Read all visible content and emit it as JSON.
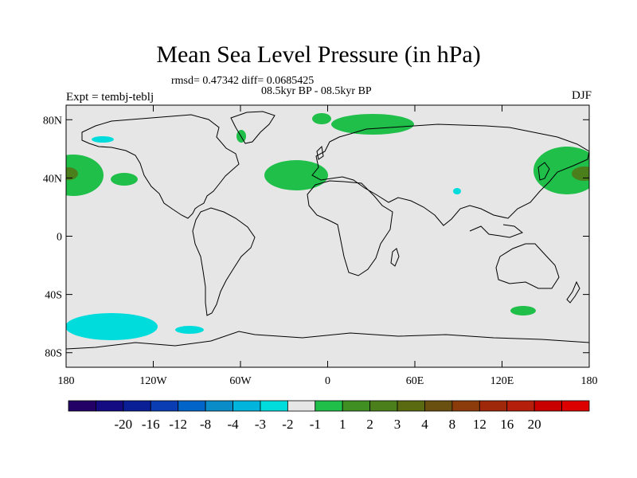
{
  "title": "Mean Sea Level Pressure (in hPa)",
  "stats_line": "rmsd= 0.47342 diff= 0.0685425",
  "period_line": "08.5kyr BP - 08.5kyr BP",
  "experiment": "Expt = tembj-teblj",
  "season": "DJF",
  "map": {
    "projection": "cylindrical equidistant",
    "lat_range": [
      -90,
      90
    ],
    "lon_range": [
      -180,
      180
    ],
    "lat_ticks": [
      "80N",
      "40N",
      "0",
      "40S",
      "80S"
    ],
    "lon_ticks": [
      "180",
      "120W",
      "60W",
      "0",
      "60E",
      "120E",
      "180"
    ],
    "background_color": "#e6e6e6",
    "anomaly_regions": [
      {
        "name": "north-pacific-west-high",
        "level": "1 to 2",
        "color": "#1fbf4a"
      },
      {
        "name": "north-pacific-west-core",
        "level": "3 to 4",
        "color": "#4a7f1c"
      },
      {
        "name": "north-pacific-east-high",
        "level": "1 to 2",
        "color": "#1fbf4a"
      },
      {
        "name": "north-pacific-east-core",
        "level": "3 to 4",
        "color": "#4a7f1c"
      },
      {
        "name": "north-atlantic-high",
        "level": "1 to 2",
        "color": "#1fbf4a"
      },
      {
        "name": "barents-high",
        "level": "1 to 2",
        "color": "#1fbf4a"
      },
      {
        "name": "mid-pacific-high",
        "level": "1 to 2",
        "color": "#1fbf4a"
      },
      {
        "name": "southern-ocean-low",
        "level": "-2 to -1",
        "color": "#00dcdc"
      }
    ]
  },
  "colorbar": {
    "colors": [
      "#220066",
      "#140a82",
      "#0a1e96",
      "#0a3cb4",
      "#0064c8",
      "#0a8cc8",
      "#00b4dc",
      "#00dcdc",
      "#e6e6e6",
      "#1fbf4a",
      "#3f8f23",
      "#4a7f1c",
      "#5a6a10",
      "#6a5010",
      "#8c3c0a",
      "#a0280a",
      "#b41e0a",
      "#c80000",
      "#dc0000"
    ],
    "labels": [
      "-20",
      "-16",
      "-12",
      "-8",
      "-4",
      "-3",
      "-2",
      "-1",
      "1",
      "2",
      "3",
      "4",
      "8",
      "12",
      "16",
      "20"
    ]
  }
}
